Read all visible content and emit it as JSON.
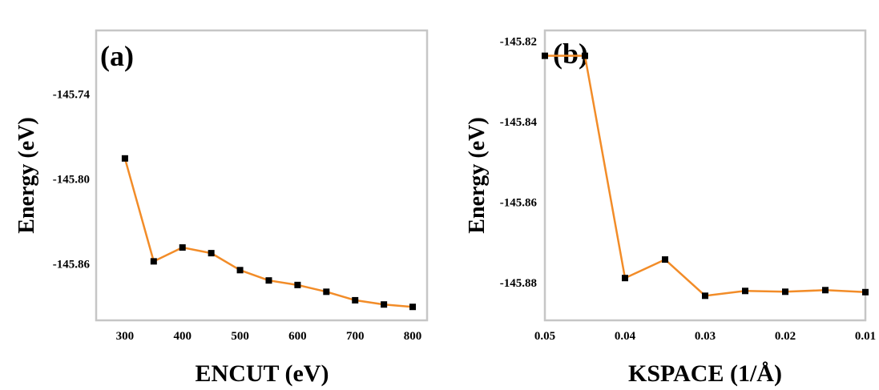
{
  "chart_data": [
    {
      "type": "line",
      "panel_label": "(a)",
      "xlabel": "ENCUT (eV)",
      "ylabel": "Energy (eV)",
      "x": [
        300,
        350,
        400,
        450,
        500,
        550,
        600,
        650,
        700,
        750,
        800
      ],
      "series": [
        {
          "values": [
            -145.7855,
            -145.8583,
            -145.8485,
            -145.8525,
            -145.8645,
            -145.8718,
            -145.875,
            -145.8798,
            -145.8858,
            -145.8888,
            -145.8905
          ]
        }
      ],
      "xticks": [
        "300",
        "400",
        "500",
        "600",
        "700",
        "800"
      ],
      "yticks": [
        "-145.74",
        "-145.80",
        "-145.86"
      ],
      "xlim": [
        250,
        825
      ],
      "ylim": [
        -145.9,
        -145.695
      ],
      "line_color": "#f28c28",
      "marker_color": "#000000",
      "grid": false
    },
    {
      "type": "line",
      "panel_label": "(b)",
      "xlabel": "KSPACE (1/Å)",
      "ylabel": "Energy (eV)",
      "x": [
        0.05,
        0.045,
        0.04,
        0.035,
        0.03,
        0.025,
        0.02,
        0.015,
        0.01
      ],
      "series": [
        {
          "values": [
            -145.8236,
            -145.8236,
            -145.8788,
            -145.8742,
            -145.8832,
            -145.882,
            -145.8822,
            -145.8818,
            -145.8823
          ]
        }
      ],
      "xticks": [
        "0.05",
        "0.04",
        "0.03",
        "0.02",
        "0.01"
      ],
      "yticks": [
        "-145.82",
        "-145.84",
        "-145.86",
        "-145.88"
      ],
      "xlim": [
        0.05,
        0.01
      ],
      "ylim": [
        -145.8893,
        -145.8173
      ],
      "line_color": "#f28c28",
      "marker_color": "#000000",
      "grid": false
    }
  ]
}
